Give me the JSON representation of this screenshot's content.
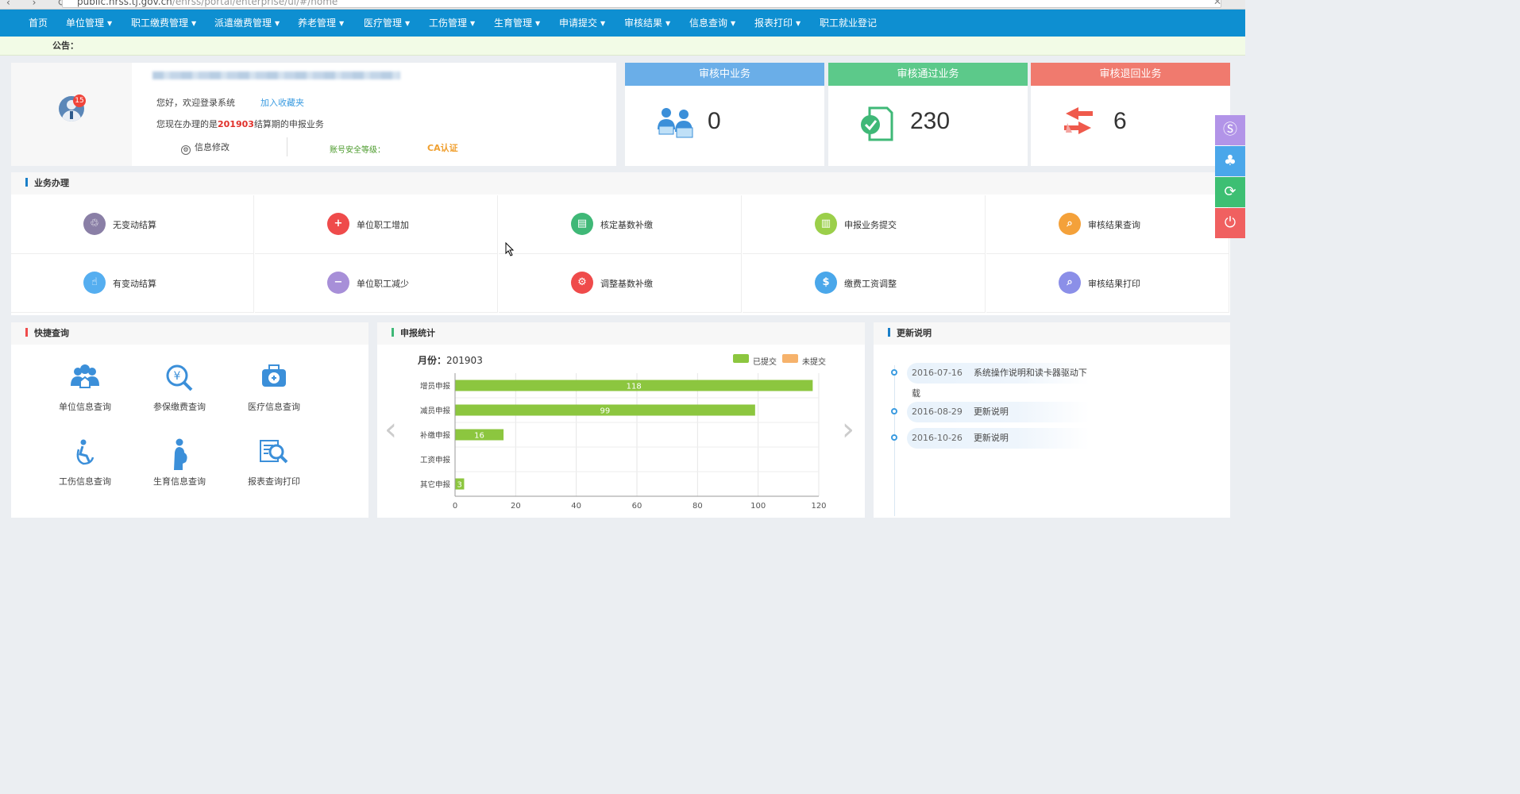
{
  "browser": {
    "url_prefix": "public.hrss.tj.gov.cn",
    "url_rest": "/ehrss/portal/enterprise/ui/#/home"
  },
  "nav": {
    "items": [
      {
        "label": "首页",
        "caret": false
      },
      {
        "label": "单位管理",
        "caret": true
      },
      {
        "label": "职工缴费管理",
        "caret": true
      },
      {
        "label": "派遣缴费管理",
        "caret": true
      },
      {
        "label": "养老管理",
        "caret": true
      },
      {
        "label": "医疗管理",
        "caret": true
      },
      {
        "label": "工伤管理",
        "caret": true
      },
      {
        "label": "生育管理",
        "caret": true
      },
      {
        "label": "申请提交",
        "caret": true
      },
      {
        "label": "审核结果",
        "caret": true
      },
      {
        "label": "信息查询",
        "caret": true
      },
      {
        "label": "报表打印",
        "caret": true
      },
      {
        "label": "职工就业登记",
        "caret": false
      }
    ]
  },
  "notice": {
    "label": "公告："
  },
  "user": {
    "badge": "15",
    "greeting": "您好，欢迎登录系统",
    "add_favorite": "加入收藏夹",
    "period_prefix": "您现在办理的是",
    "period_value": "201903",
    "period_suffix": "结算期的申报业务",
    "edit_info": "信息修改",
    "security_level": "账号安全等级：",
    "ca": "CA认证"
  },
  "stats": [
    {
      "title": "审核中业务",
      "value": "0",
      "color": "#6aaee8",
      "icon": "users-laptop-icon"
    },
    {
      "title": "审核通过业务",
      "value": "230",
      "color": "#5cc98a",
      "icon": "doc-check-icon"
    },
    {
      "title": "审核退回业务",
      "value": "6",
      "color": "#f07a6e",
      "icon": "return-arrows-icon"
    }
  ],
  "biz": {
    "title": "业务办理",
    "items": [
      {
        "label": "无变动结算",
        "color": "#8a7fa6",
        "glyph": "♲",
        "icon": "no-change-icon"
      },
      {
        "label": "单位职工增加",
        "color": "#ef4b4b",
        "glyph": "+",
        "icon": "add-user-icon"
      },
      {
        "label": "核定基数补缴",
        "color": "#3fb877",
        "glyph": "▤",
        "icon": "base-pay-icon"
      },
      {
        "label": "申报业务提交",
        "color": "#9bcf4a",
        "glyph": "▥",
        "icon": "submit-doc-icon"
      },
      {
        "label": "审核结果查询",
        "color": "#f4a13a",
        "glyph": "⌕",
        "icon": "result-search-icon"
      },
      {
        "label": "有变动结算",
        "color": "#55aef0",
        "glyph": "☝",
        "icon": "change-icon"
      },
      {
        "label": "单位职工减少",
        "color": "#a78fd8",
        "glyph": "−",
        "icon": "remove-user-icon"
      },
      {
        "label": "调整基数补缴",
        "color": "#ef4b4b",
        "glyph": "⚙",
        "icon": "adjust-gear-icon"
      },
      {
        "label": "缴费工资调整",
        "color": "#4aa7ea",
        "glyph": "$",
        "icon": "salary-icon"
      },
      {
        "label": "审核结果打印",
        "color": "#8b8fe8",
        "glyph": "⌕",
        "icon": "result-print-icon"
      }
    ]
  },
  "quick": {
    "title": "快捷查询",
    "items": [
      {
        "label": "单位信息查询",
        "icon": "unit-info-icon"
      },
      {
        "label": "参保缴费查询",
        "icon": "payment-search-icon"
      },
      {
        "label": "医疗信息查询",
        "icon": "medical-kit-icon"
      },
      {
        "label": "工伤信息查询",
        "icon": "injury-icon"
      },
      {
        "label": "生育信息查询",
        "icon": "maternity-icon"
      },
      {
        "label": "报表查询打印",
        "icon": "report-print-icon"
      }
    ]
  },
  "stats_panel": {
    "title": "申报统计",
    "month_label": "月份：",
    "month": "201903"
  },
  "chart_data": {
    "type": "bar",
    "orientation": "horizontal",
    "categories": [
      "增员申报",
      "减员申报",
      "补缴申报",
      "工资申报",
      "其它申报"
    ],
    "series": [
      {
        "name": "已提交",
        "color": "#8cc63f",
        "values": [
          118,
          99,
          16,
          0,
          3
        ]
      },
      {
        "name": "未提交",
        "color": "#f6b26b",
        "values": [
          0,
          0,
          0,
          0,
          0
        ]
      }
    ],
    "xlim": [
      0,
      120
    ],
    "xticks": [
      0,
      20,
      40,
      60,
      80,
      100,
      120
    ],
    "grid": true,
    "legend": "top-right"
  },
  "updates": {
    "title": "更新说明",
    "items": [
      {
        "date": "2016-07-16",
        "text": "系统操作说明和读卡器驱动下载"
      },
      {
        "date": "2016-08-29",
        "text": "更新说明"
      },
      {
        "date": "2016-10-26",
        "text": "更新说明"
      }
    ]
  },
  "float_buttons": [
    {
      "icon": "si-logo-icon",
      "color": "#b294e8",
      "glyph": "Ⓢ"
    },
    {
      "icon": "tree-icon",
      "color": "#4aa7ea",
      "glyph": "♣"
    },
    {
      "icon": "refresh-icon",
      "color": "#3dbf73",
      "glyph": "⟳"
    },
    {
      "icon": "power-icon",
      "color": "#f06060",
      "glyph": "⏻"
    }
  ]
}
